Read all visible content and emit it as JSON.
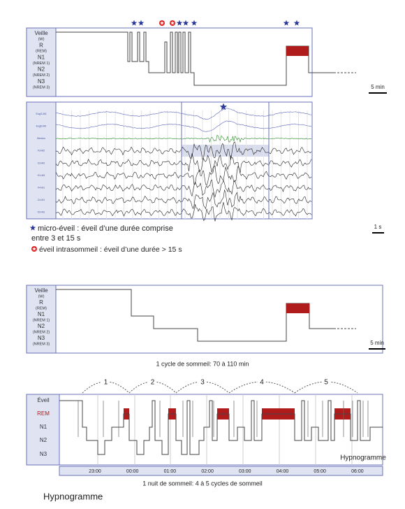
{
  "panel_1": {
    "stages": [
      {
        "name": "Veille",
        "code": "(W)"
      },
      {
        "name": "R",
        "code": "(REM)"
      },
      {
        "name": "N1",
        "code": "(NREM 1)"
      },
      {
        "name": "N2",
        "code": "(NREM 2)"
      },
      {
        "name": "N3",
        "code": "(NREM 3)"
      }
    ],
    "scale": "5 min"
  },
  "eeg": {
    "channels": [
      "EogG-M2",
      "EogD-M2",
      "Menton",
      "F3-M2",
      "C3-M2",
      "O1-M2",
      "F4-M1",
      "C4-M1",
      "O2-M1"
    ],
    "scale": "1 s"
  },
  "legend": {
    "micro_arousal": [
      "micro-éveil : éveil d’une durée comprise",
      "entre 3 et 15 s"
    ],
    "awakening": "éveil intrasommeil : éveil d’une durée > 15 s"
  },
  "panel_2": {
    "stages": [
      {
        "name": "Veille",
        "code": "(W)"
      },
      {
        "name": "R",
        "code": "(REM)"
      },
      {
        "name": "N1",
        "code": "(NREM 1)"
      },
      {
        "name": "N2",
        "code": "(NREM 2)"
      },
      {
        "name": "N3",
        "code": "(NREM 3)"
      }
    ],
    "scale": "5 min",
    "caption": "1 cycle de sommeil: 70 à 110 min"
  },
  "panel_3": {
    "cycles": [
      "1",
      "2",
      "3",
      "4",
      "5"
    ],
    "stages": [
      "Éveil",
      "REM",
      "N1",
      "N2",
      "N3"
    ],
    "label": "Hypnogramme",
    "times": [
      "23:00",
      "00:00",
      "01:00",
      "02:00",
      "03:00",
      "04:00",
      "05:00",
      "06:00"
    ],
    "caption": "1 nuit de sommeil: 4 à 5 cycles de sommeil"
  },
  "footer": "Hypnogramme"
}
